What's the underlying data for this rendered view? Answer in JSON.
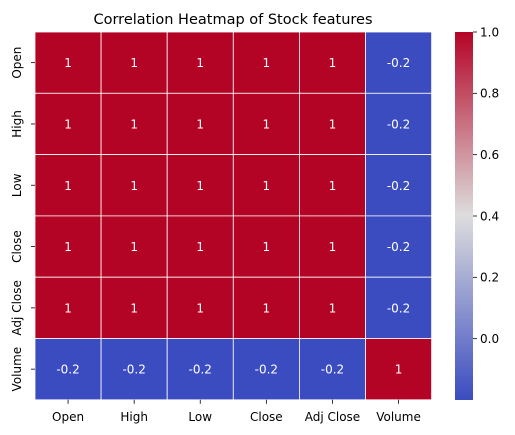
{
  "chart_data": {
    "type": "heatmap",
    "title": "Correlation Heatmap of Stock features",
    "xlabel": "",
    "ylabel": "",
    "x_categories": [
      "Open",
      "High",
      "Low",
      "Close",
      "Adj Close",
      "Volume"
    ],
    "y_categories": [
      "Open",
      "High",
      "Low",
      "Close",
      "Adj Close",
      "Volume"
    ],
    "values": [
      [
        1,
        1,
        1,
        1,
        1,
        -0.2
      ],
      [
        1,
        1,
        1,
        1,
        1,
        -0.2
      ],
      [
        1,
        1,
        1,
        1,
        1,
        -0.2
      ],
      [
        1,
        1,
        1,
        1,
        1,
        -0.2
      ],
      [
        1,
        1,
        1,
        1,
        1,
        -0.2
      ],
      [
        -0.2,
        -0.2,
        -0.2,
        -0.2,
        -0.2,
        1
      ]
    ],
    "annotations": true,
    "colormap": "coolwarm",
    "color_low": "#3b4cc0",
    "color_mid": "#dddddd",
    "color_high": "#b40426",
    "vmin": -0.2,
    "vmax": 1.0,
    "colorbar_ticks": [
      1.0,
      0.8,
      0.6,
      0.4,
      0.2,
      0.0
    ],
    "colorbar_tick_labels": [
      "1.0",
      "0.8",
      "0.6",
      "0.4",
      "0.2",
      "0.0"
    ],
    "linecolor": "#ffffff"
  }
}
